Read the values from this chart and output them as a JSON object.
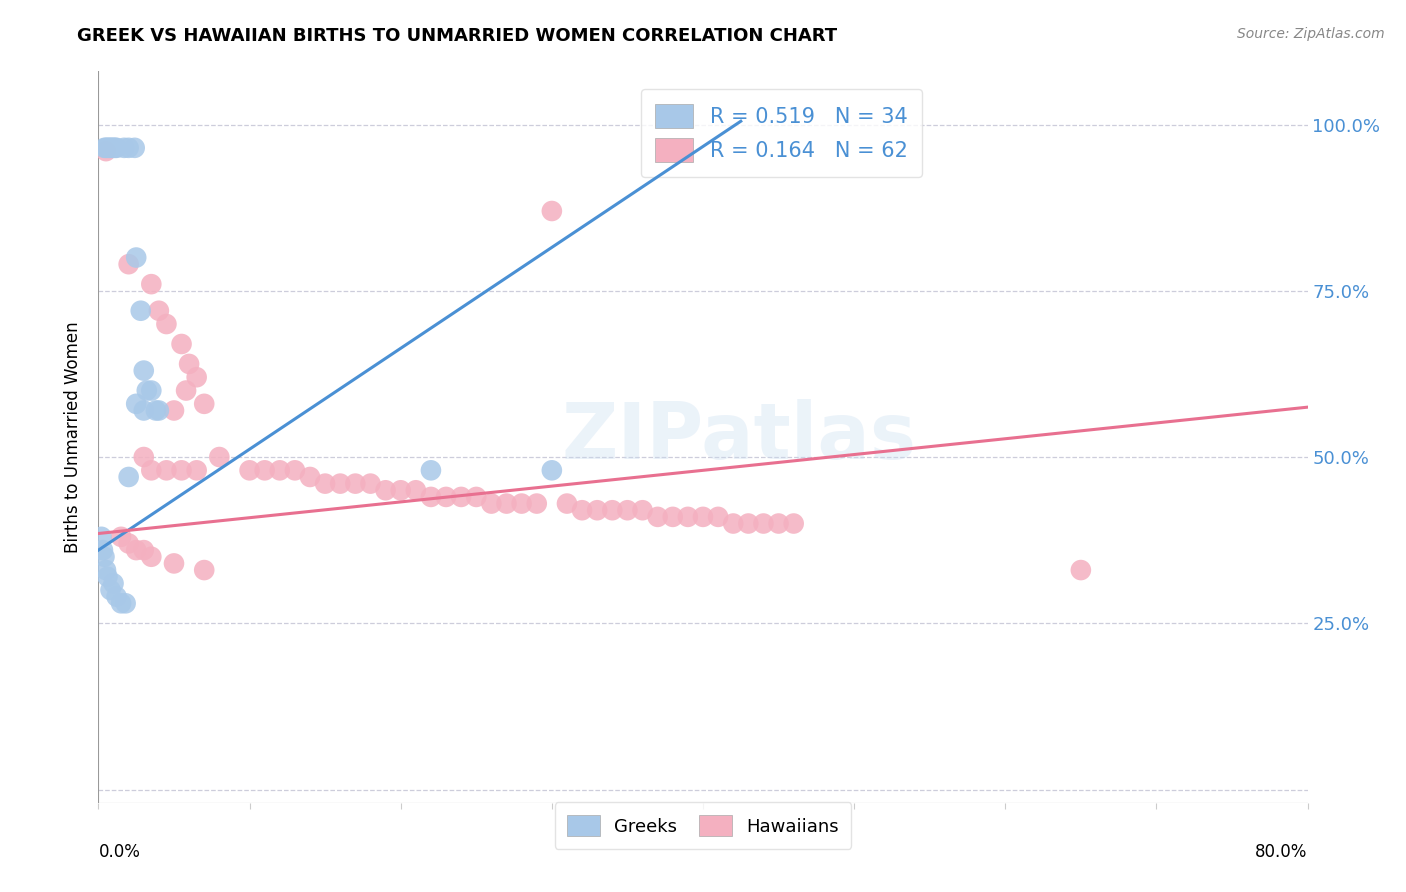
{
  "title": "GREEK VS HAWAIIAN BIRTHS TO UNMARRIED WOMEN CORRELATION CHART",
  "source": "Source: ZipAtlas.com",
  "ylabel": "Births to Unmarried Women",
  "watermark": "ZIPatlas",
  "xlim": [
    0.0,
    0.8
  ],
  "ylim": [
    -0.02,
    1.08
  ],
  "ytick_vals": [
    0.0,
    0.25,
    0.5,
    0.75,
    1.0
  ],
  "ytick_labels_right": [
    "",
    "25.0%",
    "50.0%",
    "75.0%",
    "100.0%"
  ],
  "greek_color": "#a8c8e8",
  "hawaiian_color": "#f4b0c0",
  "greek_line_color": "#4a90d4",
  "hawaiian_line_color": "#e87090",
  "R_greek": 0.519,
  "N_greek": 34,
  "R_hawaiian": 0.164,
  "N_hawaiian": 62,
  "legend_text_color": "#4a90d4",
  "background_color": "#ffffff",
  "grid_color": "#c8c8d8",
  "greek_points": [
    [
      0.004,
      0.965
    ],
    [
      0.005,
      0.965
    ],
    [
      0.006,
      0.965
    ],
    [
      0.007,
      0.965
    ],
    [
      0.008,
      0.965
    ],
    [
      0.009,
      0.965
    ],
    [
      0.01,
      0.965
    ],
    [
      0.011,
      0.965
    ],
    [
      0.012,
      0.965
    ],
    [
      0.017,
      0.965
    ],
    [
      0.02,
      0.965
    ],
    [
      0.024,
      0.965
    ],
    [
      0.025,
      0.8
    ],
    [
      0.028,
      0.72
    ],
    [
      0.03,
      0.63
    ],
    [
      0.032,
      0.6
    ],
    [
      0.02,
      0.47
    ],
    [
      0.025,
      0.58
    ],
    [
      0.03,
      0.57
    ],
    [
      0.035,
      0.6
    ],
    [
      0.04,
      0.57
    ],
    [
      0.038,
      0.57
    ],
    [
      0.002,
      0.38
    ],
    [
      0.003,
      0.36
    ],
    [
      0.004,
      0.35
    ],
    [
      0.005,
      0.33
    ],
    [
      0.006,
      0.32
    ],
    [
      0.008,
      0.3
    ],
    [
      0.01,
      0.31
    ],
    [
      0.012,
      0.29
    ],
    [
      0.015,
      0.28
    ],
    [
      0.018,
      0.28
    ],
    [
      0.22,
      0.48
    ],
    [
      0.3,
      0.48
    ]
  ],
  "hawaiian_points": [
    [
      0.005,
      0.96
    ],
    [
      0.3,
      0.87
    ],
    [
      0.02,
      0.79
    ],
    [
      0.035,
      0.76
    ],
    [
      0.04,
      0.72
    ],
    [
      0.045,
      0.7
    ],
    [
      0.055,
      0.67
    ],
    [
      0.06,
      0.64
    ],
    [
      0.065,
      0.62
    ],
    [
      0.058,
      0.6
    ],
    [
      0.07,
      0.58
    ],
    [
      0.05,
      0.57
    ],
    [
      0.03,
      0.5
    ],
    [
      0.08,
      0.5
    ],
    [
      0.035,
      0.48
    ],
    [
      0.045,
      0.48
    ],
    [
      0.055,
      0.48
    ],
    [
      0.065,
      0.48
    ],
    [
      0.1,
      0.48
    ],
    [
      0.11,
      0.48
    ],
    [
      0.12,
      0.48
    ],
    [
      0.13,
      0.48
    ],
    [
      0.14,
      0.47
    ],
    [
      0.15,
      0.46
    ],
    [
      0.16,
      0.46
    ],
    [
      0.17,
      0.46
    ],
    [
      0.18,
      0.46
    ],
    [
      0.19,
      0.45
    ],
    [
      0.2,
      0.45
    ],
    [
      0.21,
      0.45
    ],
    [
      0.22,
      0.44
    ],
    [
      0.23,
      0.44
    ],
    [
      0.24,
      0.44
    ],
    [
      0.25,
      0.44
    ],
    [
      0.26,
      0.43
    ],
    [
      0.27,
      0.43
    ],
    [
      0.28,
      0.43
    ],
    [
      0.29,
      0.43
    ],
    [
      0.31,
      0.43
    ],
    [
      0.32,
      0.42
    ],
    [
      0.33,
      0.42
    ],
    [
      0.34,
      0.42
    ],
    [
      0.35,
      0.42
    ],
    [
      0.36,
      0.42
    ],
    [
      0.37,
      0.41
    ],
    [
      0.38,
      0.41
    ],
    [
      0.39,
      0.41
    ],
    [
      0.4,
      0.41
    ],
    [
      0.41,
      0.41
    ],
    [
      0.42,
      0.4
    ],
    [
      0.43,
      0.4
    ],
    [
      0.44,
      0.4
    ],
    [
      0.45,
      0.4
    ],
    [
      0.46,
      0.4
    ],
    [
      0.015,
      0.38
    ],
    [
      0.02,
      0.37
    ],
    [
      0.025,
      0.36
    ],
    [
      0.03,
      0.36
    ],
    [
      0.035,
      0.35
    ],
    [
      0.05,
      0.34
    ],
    [
      0.07,
      0.33
    ],
    [
      0.65,
      0.33
    ]
  ],
  "greek_line_x0": 0.0,
  "greek_line_y0": 0.36,
  "greek_line_x1": 0.425,
  "greek_line_y1": 1.005,
  "hawaiian_line_x0": 0.0,
  "hawaiian_line_y0": 0.385,
  "hawaiian_line_x1": 0.8,
  "hawaiian_line_y1": 0.575
}
